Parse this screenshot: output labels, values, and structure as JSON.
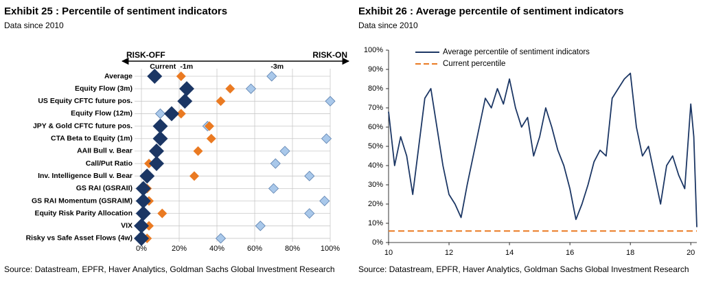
{
  "chart_data": [
    {
      "type": "dot",
      "title": "Exhibit 25 : Percentile of sentiment indicators",
      "subtitle": "Data since 2010",
      "source": "Source: Datastream, EPFR, Haver Analytics, Goldman Sachs Global Investment Research",
      "annotations": [
        "RISK-OFF",
        "RISK-ON"
      ],
      "categories": [
        "Average",
        "Equity Flow (3m)",
        "US Equity CFTC future pos.",
        "Equity Flow (12m)",
        "JPY & Gold CFTC future pos.",
        "CTA Beta to Equity (1m)",
        "AAII Bull v. Bear",
        "Call/Put Ratio",
        "Inv. Intelligence Bull v. Bear",
        "GS RAI (GSRAII)",
        "GS RAI Momentum (GSRAIM)",
        "Equity Risk Parity Allocation",
        "VIX",
        "Risky vs Safe Asset Flows (4w)"
      ],
      "series": [
        {
          "name": "-3m",
          "color": "#a9c8ea",
          "values": [
            69,
            58,
            100,
            10,
            35,
            98,
            76,
            71,
            89,
            70,
            97,
            89,
            63,
            42
          ]
        },
        {
          "name": "-1m",
          "color": "#ea7a22",
          "values": [
            21,
            47,
            42,
            21,
            36,
            37,
            30,
            4,
            28,
            3,
            4,
            11,
            4,
            3
          ]
        },
        {
          "name": "Current",
          "color": "#1b3664",
          "values": [
            7,
            24,
            23,
            16,
            10,
            10,
            8,
            8,
            3,
            1,
            1,
            1,
            0,
            0
          ]
        }
      ],
      "xlim": [
        0,
        100
      ],
      "xticks": [
        {
          "value": 0,
          "label": "0%"
        },
        {
          "value": 20,
          "label": "20%"
        },
        {
          "value": 40,
          "label": "40%"
        },
        {
          "value": 60,
          "label": "60%"
        },
        {
          "value": 80,
          "label": "80%"
        },
        {
          "value": 100,
          "label": "100%"
        }
      ],
      "grid": true
    },
    {
      "type": "line",
      "title": "Exhibit 26 : Average percentile of sentiment indicators",
      "subtitle": "Data since 2010",
      "source": "Source: Datastream, EPFR, Haver Analytics, Goldman Sachs Global Investment Research",
      "x": [
        10.0,
        10.2,
        10.4,
        10.6,
        10.8,
        11.0,
        11.2,
        11.4,
        11.6,
        11.8,
        12.0,
        12.2,
        12.4,
        12.6,
        12.8,
        13.0,
        13.2,
        13.4,
        13.6,
        13.8,
        14.0,
        14.2,
        14.4,
        14.6,
        14.8,
        15.0,
        15.2,
        15.4,
        15.6,
        15.8,
        16.0,
        16.2,
        16.4,
        16.6,
        16.8,
        17.0,
        17.2,
        17.4,
        17.6,
        17.8,
        18.0,
        18.2,
        18.4,
        18.6,
        18.8,
        19.0,
        19.2,
        19.4,
        19.6,
        19.8,
        20.0,
        20.1,
        20.2
      ],
      "series": [
        {
          "name": "Average percentile of sentiment indicators",
          "color": "#1b3664",
          "values": [
            68,
            40,
            55,
            45,
            25,
            50,
            75,
            80,
            60,
            40,
            25,
            20,
            13,
            30,
            45,
            60,
            75,
            70,
            80,
            72,
            85,
            70,
            60,
            65,
            45,
            55,
            70,
            60,
            48,
            40,
            28,
            12,
            20,
            30,
            42,
            48,
            45,
            75,
            80,
            85,
            88,
            60,
            45,
            50,
            35,
            20,
            40,
            45,
            35,
            28,
            72,
            55,
            8
          ]
        }
      ],
      "reference_lines": [
        {
          "name": "Current percentile",
          "value": 6,
          "color": "#ea7a22"
        }
      ],
      "xlim": [
        10,
        20.2
      ],
      "xticks": [
        10,
        12,
        14,
        16,
        18,
        20
      ],
      "ylim": [
        0,
        100
      ],
      "yticks": [
        {
          "value": 0,
          "label": "0%"
        },
        {
          "value": 10,
          "label": "10%"
        },
        {
          "value": 20,
          "label": "20%"
        },
        {
          "value": 30,
          "label": "30%"
        },
        {
          "value": 40,
          "label": "40%"
        },
        {
          "value": 50,
          "label": "50%"
        },
        {
          "value": 60,
          "label": "60%"
        },
        {
          "value": 70,
          "label": "70%"
        },
        {
          "value": 80,
          "label": "80%"
        },
        {
          "value": 90,
          "label": "90%"
        },
        {
          "value": 100,
          "label": "100%"
        }
      ]
    }
  ]
}
